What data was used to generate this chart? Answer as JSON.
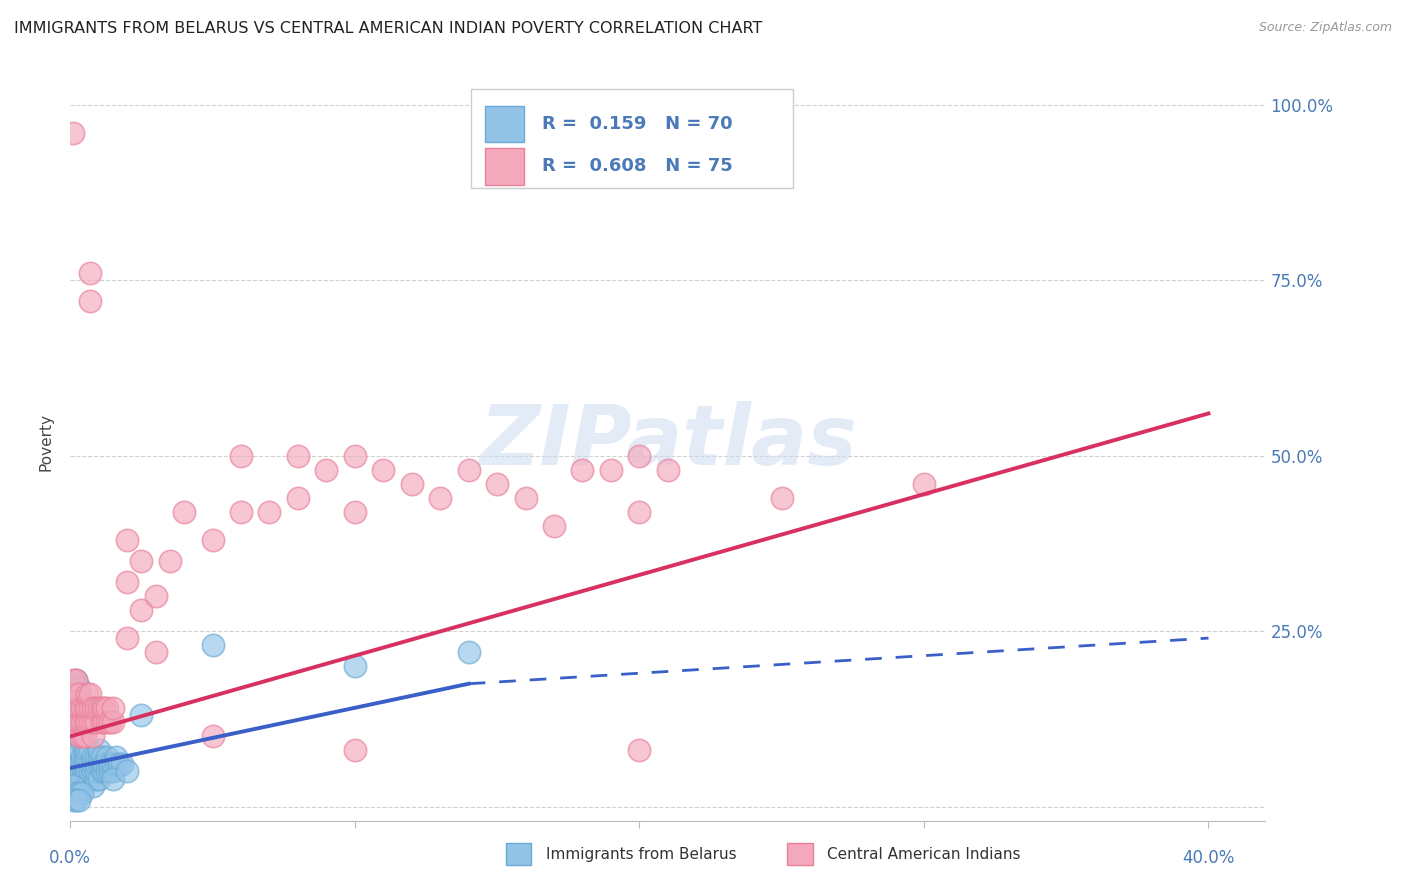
{
  "title": "IMMIGRANTS FROM BELARUS VS CENTRAL AMERICAN INDIAN POVERTY CORRELATION CHART",
  "source": "Source: ZipAtlas.com",
  "ylabel": "Poverty",
  "legend_label_blue": "Immigrants from Belarus",
  "legend_label_pink": "Central American Indians",
  "blue_color": "#93c4e8",
  "pink_color": "#f4a8bc",
  "blue_edge_color": "#6aaad4",
  "pink_edge_color": "#e8809a",
  "blue_line_color": "#3a5fc8",
  "pink_line_color": "#d83060",
  "watermark": "ZIPatlas",
  "bg_color": "#ffffff",
  "grid_color": "#cccccc",
  "tick_color": "#4a7ab8",
  "title_color": "#222222",
  "title_fontsize": 11.5,
  "blue_scatter": [
    [
      0.001,
      0.04
    ],
    [
      0.002,
      0.05
    ],
    [
      0.002,
      0.06
    ],
    [
      0.002,
      0.08
    ],
    [
      0.003,
      0.05
    ],
    [
      0.003,
      0.06
    ],
    [
      0.003,
      0.08
    ],
    [
      0.003,
      0.1
    ],
    [
      0.004,
      0.04
    ],
    [
      0.004,
      0.06
    ],
    [
      0.004,
      0.07
    ],
    [
      0.004,
      0.09
    ],
    [
      0.005,
      0.05
    ],
    [
      0.005,
      0.06
    ],
    [
      0.005,
      0.07
    ],
    [
      0.005,
      0.08
    ],
    [
      0.006,
      0.04
    ],
    [
      0.006,
      0.05
    ],
    [
      0.006,
      0.07
    ],
    [
      0.006,
      0.08
    ],
    [
      0.007,
      0.04
    ],
    [
      0.007,
      0.05
    ],
    [
      0.007,
      0.06
    ],
    [
      0.007,
      0.08
    ],
    [
      0.008,
      0.03
    ],
    [
      0.008,
      0.05
    ],
    [
      0.008,
      0.06
    ],
    [
      0.008,
      0.07
    ],
    [
      0.009,
      0.04
    ],
    [
      0.009,
      0.05
    ],
    [
      0.009,
      0.06
    ],
    [
      0.009,
      0.07
    ],
    [
      0.01,
      0.04
    ],
    [
      0.01,
      0.06
    ],
    [
      0.01,
      0.07
    ],
    [
      0.01,
      0.08
    ],
    [
      0.011,
      0.05
    ],
    [
      0.011,
      0.06
    ],
    [
      0.011,
      0.07
    ],
    [
      0.012,
      0.05
    ],
    [
      0.012,
      0.06
    ],
    [
      0.013,
      0.05
    ],
    [
      0.013,
      0.06
    ],
    [
      0.013,
      0.07
    ],
    [
      0.014,
      0.05
    ],
    [
      0.014,
      0.06
    ],
    [
      0.015,
      0.05
    ],
    [
      0.015,
      0.06
    ],
    [
      0.016,
      0.06
    ],
    [
      0.016,
      0.07
    ],
    [
      0.017,
      0.06
    ],
    [
      0.018,
      0.06
    ],
    [
      0.002,
      0.15
    ],
    [
      0.003,
      0.14
    ],
    [
      0.004,
      0.13
    ],
    [
      0.001,
      0.03
    ],
    [
      0.002,
      0.02
    ],
    [
      0.003,
      0.02
    ],
    [
      0.004,
      0.02
    ],
    [
      0.001,
      0.01
    ],
    [
      0.002,
      0.01
    ],
    [
      0.003,
      0.01
    ],
    [
      0.05,
      0.23
    ],
    [
      0.1,
      0.2
    ],
    [
      0.14,
      0.22
    ],
    [
      0.015,
      0.04
    ],
    [
      0.02,
      0.05
    ],
    [
      0.025,
      0.13
    ],
    [
      0.002,
      0.18
    ],
    [
      0.003,
      0.17
    ]
  ],
  "pink_scatter": [
    [
      0.001,
      0.12
    ],
    [
      0.001,
      0.14
    ],
    [
      0.001,
      0.16
    ],
    [
      0.001,
      0.18
    ],
    [
      0.002,
      0.12
    ],
    [
      0.002,
      0.14
    ],
    [
      0.002,
      0.16
    ],
    [
      0.002,
      0.18
    ],
    [
      0.003,
      0.1
    ],
    [
      0.003,
      0.12
    ],
    [
      0.003,
      0.14
    ],
    [
      0.003,
      0.16
    ],
    [
      0.004,
      0.1
    ],
    [
      0.004,
      0.12
    ],
    [
      0.004,
      0.14
    ],
    [
      0.005,
      0.1
    ],
    [
      0.005,
      0.12
    ],
    [
      0.005,
      0.14
    ],
    [
      0.006,
      0.12
    ],
    [
      0.006,
      0.14
    ],
    [
      0.006,
      0.16
    ],
    [
      0.007,
      0.12
    ],
    [
      0.007,
      0.14
    ],
    [
      0.007,
      0.16
    ],
    [
      0.008,
      0.1
    ],
    [
      0.008,
      0.12
    ],
    [
      0.008,
      0.14
    ],
    [
      0.009,
      0.12
    ],
    [
      0.009,
      0.14
    ],
    [
      0.01,
      0.14
    ],
    [
      0.011,
      0.12
    ],
    [
      0.011,
      0.14
    ],
    [
      0.012,
      0.12
    ],
    [
      0.012,
      0.14
    ],
    [
      0.013,
      0.12
    ],
    [
      0.013,
      0.14
    ],
    [
      0.014,
      0.12
    ],
    [
      0.015,
      0.12
    ],
    [
      0.015,
      0.14
    ],
    [
      0.02,
      0.32
    ],
    [
      0.02,
      0.38
    ],
    [
      0.025,
      0.28
    ],
    [
      0.025,
      0.35
    ],
    [
      0.03,
      0.22
    ],
    [
      0.03,
      0.3
    ],
    [
      0.035,
      0.35
    ],
    [
      0.04,
      0.42
    ],
    [
      0.05,
      0.38
    ],
    [
      0.06,
      0.42
    ],
    [
      0.07,
      0.42
    ],
    [
      0.08,
      0.44
    ],
    [
      0.09,
      0.48
    ],
    [
      0.1,
      0.42
    ],
    [
      0.11,
      0.48
    ],
    [
      0.12,
      0.46
    ],
    [
      0.13,
      0.44
    ],
    [
      0.14,
      0.48
    ],
    [
      0.15,
      0.46
    ],
    [
      0.16,
      0.44
    ],
    [
      0.17,
      0.4
    ],
    [
      0.18,
      0.48
    ],
    [
      0.19,
      0.48
    ],
    [
      0.2,
      0.42
    ],
    [
      0.21,
      0.48
    ],
    [
      0.007,
      0.72
    ],
    [
      0.007,
      0.76
    ],
    [
      0.001,
      0.96
    ],
    [
      0.06,
      0.5
    ],
    [
      0.08,
      0.5
    ],
    [
      0.1,
      0.5
    ],
    [
      0.2,
      0.5
    ],
    [
      0.25,
      0.44
    ],
    [
      0.3,
      0.46
    ],
    [
      0.05,
      0.1
    ],
    [
      0.1,
      0.08
    ],
    [
      0.2,
      0.08
    ],
    [
      0.02,
      0.24
    ]
  ],
  "blue_line": [
    [
      0.0,
      0.055
    ],
    [
      0.14,
      0.175
    ]
  ],
  "blue_dash_line": [
    [
      0.14,
      0.175
    ],
    [
      0.4,
      0.24
    ]
  ],
  "pink_line": [
    [
      0.0,
      0.1
    ],
    [
      0.4,
      0.56
    ]
  ],
  "xlim": [
    0.0,
    0.42
  ],
  "ylim": [
    -0.02,
    1.06
  ],
  "yticks": [
    0.0,
    0.25,
    0.5,
    0.75,
    1.0
  ],
  "ytick_labels": [
    "",
    "25.0%",
    "50.0%",
    "75.0%",
    "100.0%"
  ],
  "xtick_left_label": "0.0%",
  "xtick_right_label": "40.0%"
}
